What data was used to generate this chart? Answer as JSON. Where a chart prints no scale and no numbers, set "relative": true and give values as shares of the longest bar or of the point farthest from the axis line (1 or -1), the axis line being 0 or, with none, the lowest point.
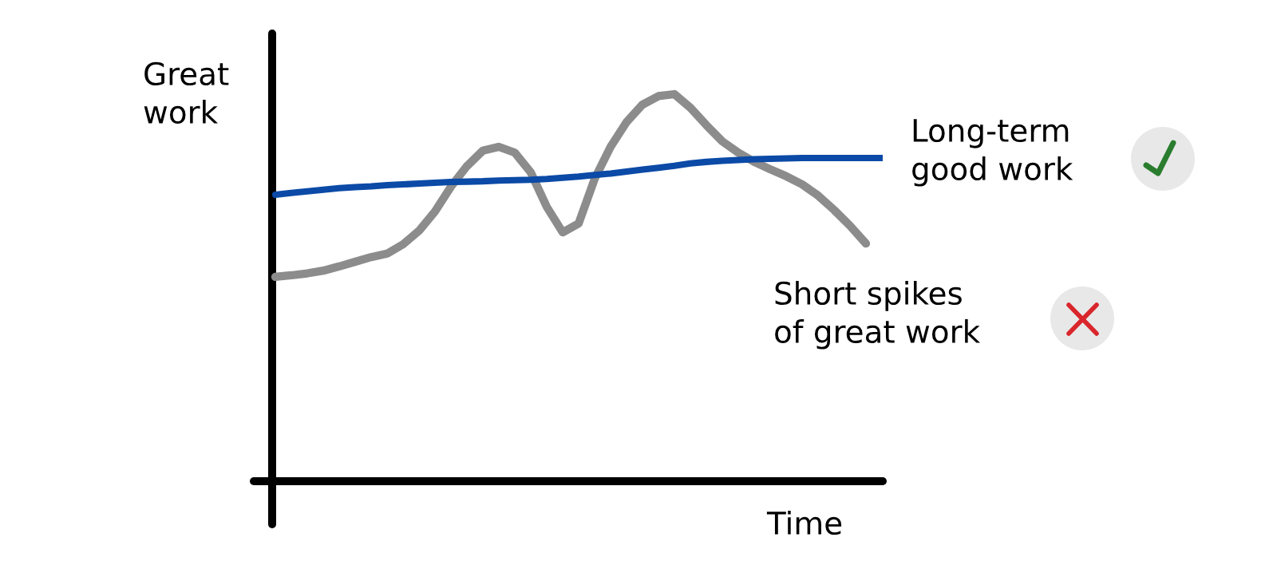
{
  "chart_data": {
    "type": "line",
    "relative": true,
    "ylabel": "Great\nwork",
    "xlabel": "Time",
    "categories": [
      null,
      null,
      null,
      null,
      null,
      null,
      null,
      null,
      null,
      null,
      null,
      null,
      null,
      null,
      null,
      null,
      null,
      null,
      null,
      null,
      null,
      null,
      null,
      null,
      null,
      null,
      null,
      null,
      null,
      null,
      null,
      null,
      null,
      null,
      null,
      null,
      null,
      null,
      null
    ],
    "series": [
      {
        "name": "Long-term\ngood work",
        "color": "#0b4aa6",
        "values": [
          0.74,
          0.745,
          0.749,
          0.753,
          0.757,
          0.76,
          0.762,
          0.765,
          0.767,
          0.769,
          0.771,
          0.773,
          0.774,
          0.775,
          0.777,
          0.778,
          0.779,
          0.781,
          0.784,
          0.787,
          0.791,
          0.795,
          0.8,
          0.805,
          0.81,
          0.815,
          0.821,
          0.825,
          0.828,
          0.83,
          0.832,
          0.833,
          0.834,
          0.835,
          0.835,
          0.835,
          0.835,
          0.835,
          0.835
        ]
      },
      {
        "name": "Short spikes\nof great work",
        "color": "#8c8c8c",
        "values": [
          0.528,
          0.532,
          0.537,
          0.544,
          0.555,
          0.567,
          0.579,
          0.588,
          0.612,
          0.647,
          0.697,
          0.761,
          0.814,
          0.854,
          0.864,
          0.849,
          0.798,
          0.709,
          0.643,
          0.666,
          0.781,
          0.864,
          0.928,
          0.973,
          0.995,
          1.0,
          0.965,
          0.92,
          0.878,
          0.849,
          0.825,
          0.806,
          0.788,
          0.767,
          0.738,
          0.701,
          0.66,
          0.614,
          null
        ]
      }
    ]
  }
}
